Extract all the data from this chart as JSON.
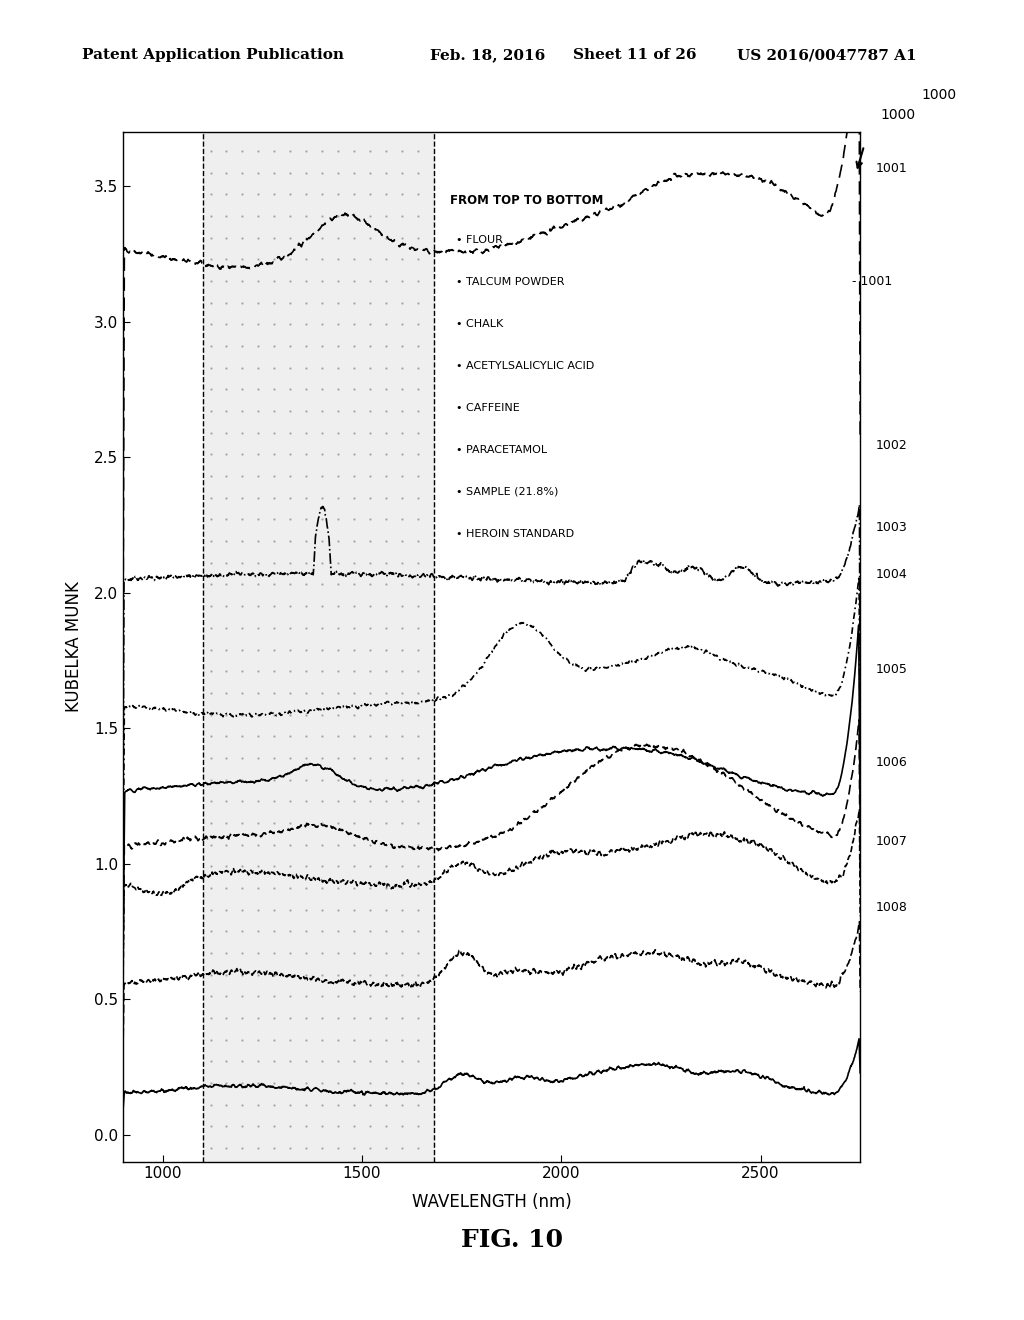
{
  "title": "FIG. 10",
  "xlabel": "WAVELENGTH (nm)",
  "ylabel": "KUBELKA MUNK",
  "xlim": [
    900,
    2750
  ],
  "ylim": [
    -0.1,
    3.7
  ],
  "yticks": [
    0.0,
    0.5,
    1.0,
    1.5,
    2.0,
    2.5,
    3.0,
    3.5
  ],
  "xticks": [
    1000,
    1500,
    2000,
    2500
  ],
  "shaded_region": [
    1100,
    1680
  ],
  "header_text": "Patent Application Publication",
  "header_date": "Feb. 18, 2016",
  "header_sheet": "Sheet 11 of 26",
  "header_patent": "US 2016/0047787 A1",
  "fig_label": "1000",
  "curve_labels": [
    "1001",
    "1002",
    "1003",
    "1004",
    "1005",
    "1006",
    "1007",
    "1008"
  ],
  "legend_title": "FROM TOP TO BOTTOM",
  "legend_items": [
    "FLOUR",
    "TALCUM POWDER",
    "CHALK",
    "ACETYLSALICYLIC ACID",
    "CAFFEINE",
    "PARACETAMOL",
    "SAMPLE (21.8%)",
    "HEROIN STANDARD"
  ],
  "background_color": "#ffffff",
  "curve_color": "#000000"
}
